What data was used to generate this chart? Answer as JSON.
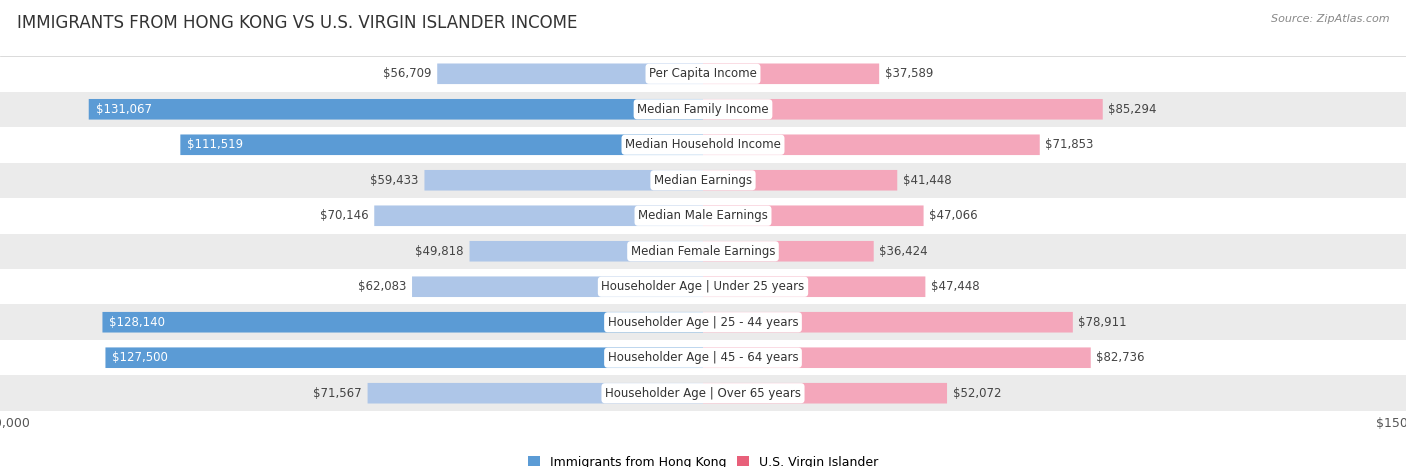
{
  "title": "IMMIGRANTS FROM HONG KONG VS U.S. VIRGIN ISLANDER INCOME",
  "source": "Source: ZipAtlas.com",
  "categories": [
    "Per Capita Income",
    "Median Family Income",
    "Median Household Income",
    "Median Earnings",
    "Median Male Earnings",
    "Median Female Earnings",
    "Householder Age | Under 25 years",
    "Householder Age | 25 - 44 years",
    "Householder Age | 45 - 64 years",
    "Householder Age | Over 65 years"
  ],
  "hk_values": [
    56709,
    131067,
    111519,
    59433,
    70146,
    49818,
    62083,
    128140,
    127500,
    71567
  ],
  "vi_values": [
    37589,
    85294,
    71853,
    41448,
    47066,
    36424,
    47448,
    78911,
    82736,
    52072
  ],
  "hk_labels": [
    "$56,709",
    "$131,067",
    "$111,519",
    "$59,433",
    "$70,146",
    "$49,818",
    "$62,083",
    "$128,140",
    "$127,500",
    "$71,567"
  ],
  "vi_labels": [
    "$37,589",
    "$85,294",
    "$71,853",
    "$41,448",
    "$47,066",
    "$36,424",
    "$47,448",
    "$78,911",
    "$82,736",
    "$52,072"
  ],
  "hk_color_light": "#aec6e8",
  "hk_color_dark": "#5b9bd5",
  "vi_color_light": "#f4a7bb",
  "vi_color_dark": "#e8607a",
  "max_value": 150000,
  "bar_height": 0.58,
  "fig_bg": "#ffffff",
  "row_bg_even": "#ffffff",
  "row_bg_odd": "#ebebeb",
  "threshold_dark": 100000,
  "label_fontsize": 8.5,
  "cat_fontsize": 8.5,
  "title_fontsize": 12,
  "source_fontsize": 8
}
